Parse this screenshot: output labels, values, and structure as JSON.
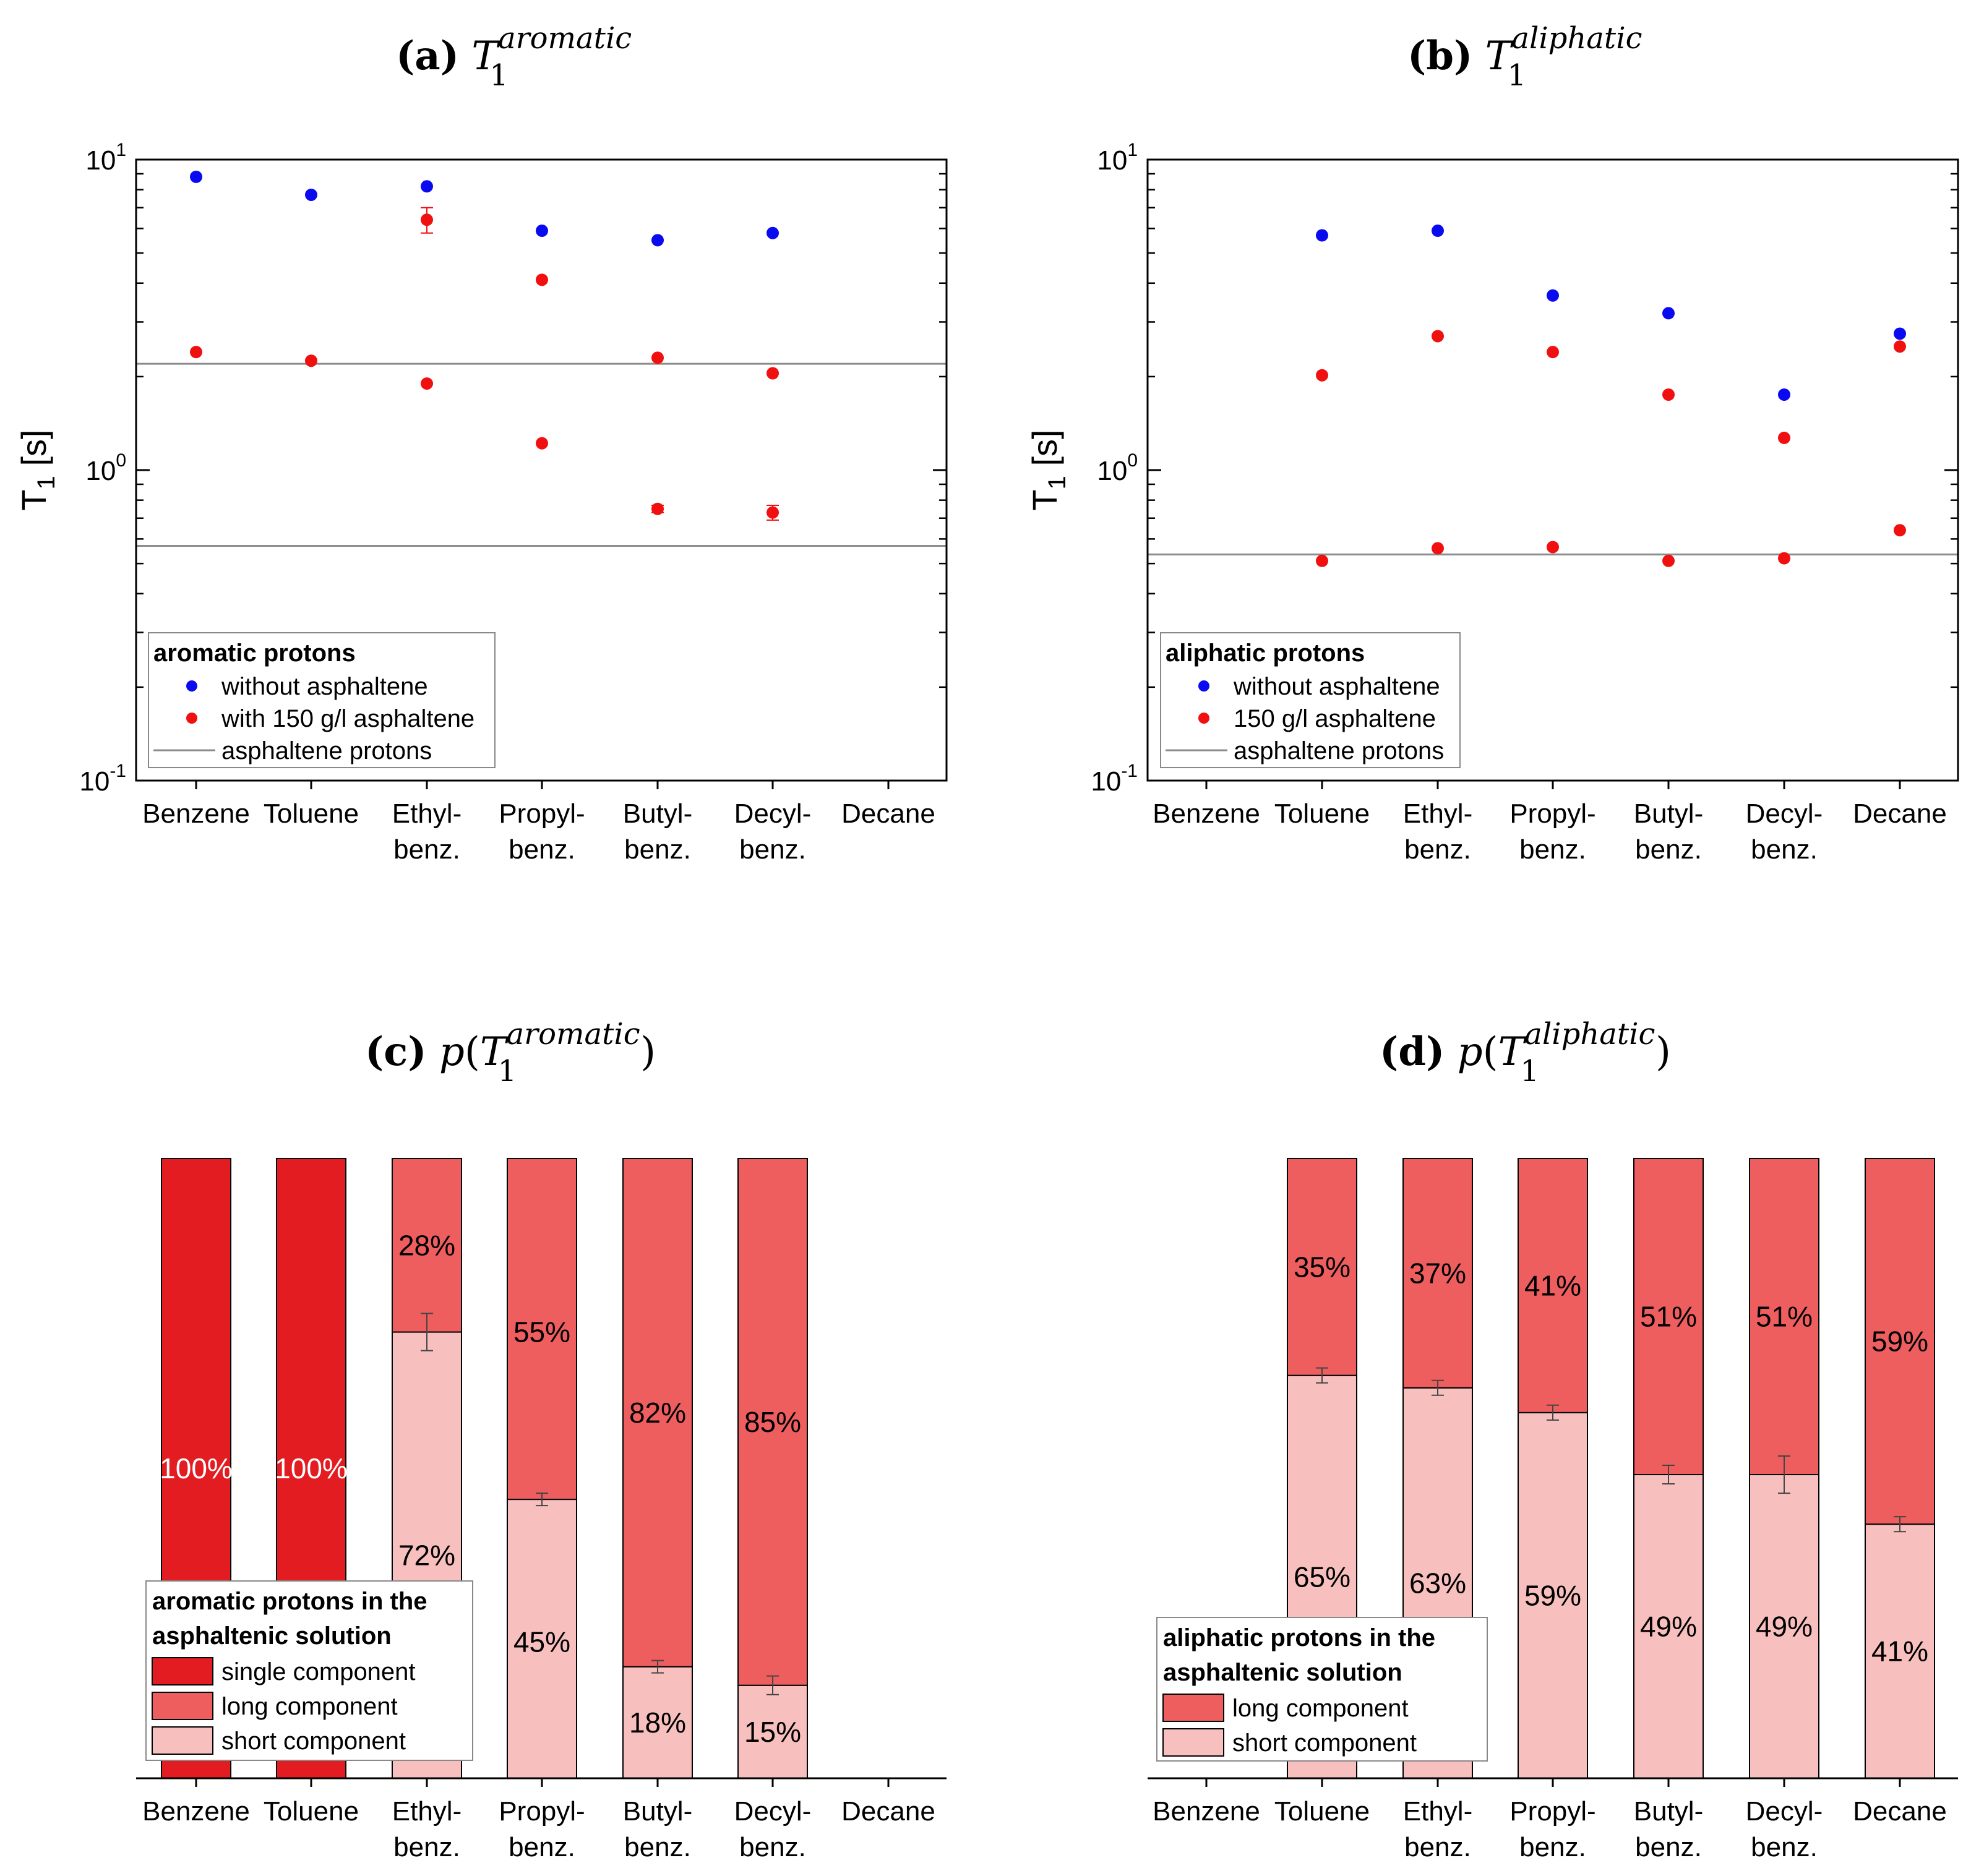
{
  "colors": {
    "blue": "#0a0af0",
    "red": "#f01010",
    "single": "#e31c22",
    "long": "#ee5e5f",
    "short": "#f7c0be",
    "line": "#8c8c8c",
    "errbar": "#444444"
  },
  "panels": {
    "a": {
      "letter": "(a)",
      "sym": "T",
      "sup": "aromatic",
      "sub": "1"
    },
    "b": {
      "letter": "(b)",
      "sym": "T",
      "sup": "aliphatic",
      "sub": "1"
    },
    "c": {
      "letter": "(c)",
      "pre": "p",
      "open": "(",
      "sym": "T",
      "sup": "aromatic",
      "sub": "1",
      "close": ")"
    },
    "d": {
      "letter": "(d)",
      "pre": "p",
      "open": "(",
      "sym": "T",
      "sup": "aliphatic",
      "sub": "1",
      "close": ")"
    }
  },
  "ylabel_main": "T",
  "ylabel_sub": "1",
  "ylabel_unit": " [s]",
  "yticks": [
    {
      "base": "10",
      "exp": "1",
      "value": 10
    },
    {
      "base": "10",
      "exp": "0",
      "value": 1
    },
    {
      "base": "10",
      "exp": "-1",
      "value": 0.1
    }
  ],
  "categories": [
    [
      "Benzene"
    ],
    [
      "Toluene"
    ],
    [
      "Ethyl-",
      "benz."
    ],
    [
      "Propyl-",
      "benz."
    ],
    [
      "Butyl-",
      "benz."
    ],
    [
      "Decyl-",
      "benz."
    ],
    [
      "Decane"
    ]
  ],
  "chart_data": [
    {
      "panel": "a",
      "type": "scatter",
      "title": "(a) T1^aromatic",
      "ylabel": "T1 [s]",
      "yscale": "log",
      "ylim": [
        0.1,
        10
      ],
      "legend": {
        "title": "aromatic protons",
        "entries": [
          "without asphaltene",
          "with 150 g/l asphaltene",
          "asphaltene protons"
        ]
      },
      "series": [
        {
          "name": "without asphaltene",
          "color": "blue",
          "x": [
            0,
            1,
            2,
            3,
            4,
            5
          ],
          "y": [
            8.8,
            7.7,
            8.2,
            5.9,
            5.5,
            5.8
          ]
        },
        {
          "name": "with 150 g/l asphaltene (long)",
          "color": "red",
          "x": [
            0,
            1,
            2,
            3,
            4,
            5
          ],
          "y": [
            2.4,
            2.25,
            6.4,
            4.1,
            2.3,
            2.05
          ],
          "err": [
            0,
            0,
            0.6,
            0,
            0,
            0
          ]
        },
        {
          "name": "with 150 g/l asphaltene (short)",
          "color": "red",
          "x": [
            2,
            3,
            4,
            5
          ],
          "y": [
            1.9,
            1.22,
            0.75,
            0.73
          ],
          "err": [
            0,
            0,
            0.02,
            0.04
          ]
        }
      ],
      "hlines": [
        2.2,
        0.57
      ]
    },
    {
      "panel": "b",
      "type": "scatter",
      "title": "(b) T1^aliphatic",
      "ylabel": "T1 [s]",
      "yscale": "log",
      "ylim": [
        0.1,
        10
      ],
      "legend": {
        "title": "aliphatic protons",
        "entries": [
          "without asphaltene",
          "150 g/l asphaltene",
          "asphaltene protons"
        ]
      },
      "series": [
        {
          "name": "without asphaltene",
          "color": "blue",
          "x": [
            1,
            2,
            3,
            4,
            5,
            6
          ],
          "y": [
            5.7,
            5.9,
            3.65,
            3.2,
            1.75,
            2.75
          ]
        },
        {
          "name": "150 g/l asphaltene (long)",
          "color": "red",
          "x": [
            1,
            2,
            3,
            4,
            5,
            6
          ],
          "y": [
            2.02,
            2.7,
            2.4,
            1.75,
            1.27,
            2.5
          ],
          "err": [
            0,
            0,
            0,
            0,
            0,
            0
          ]
        },
        {
          "name": "150 g/l asphaltene (short)",
          "color": "red",
          "x": [
            1,
            2,
            3,
            4,
            5,
            6
          ],
          "y": [
            0.51,
            0.56,
            0.565,
            0.51,
            0.52,
            0.64
          ],
          "err": [
            0,
            0,
            0,
            0,
            0,
            0
          ]
        }
      ],
      "hlines": [
        0.535
      ]
    },
    {
      "panel": "c",
      "type": "bar",
      "stacked": true,
      "title": "(c) p(T1^aromatic)",
      "ylim": [
        0,
        100
      ],
      "legend": {
        "title": [
          "aromatic protons in the",
          "asphaltenic solution"
        ],
        "entries": [
          "single component",
          "long component",
          "short component"
        ]
      },
      "bars": [
        {
          "x": 0,
          "single": 100
        },
        {
          "x": 1,
          "single": 100
        },
        {
          "x": 2,
          "short": 72,
          "long": 28,
          "err": 3
        },
        {
          "x": 3,
          "short": 45,
          "long": 55,
          "err": 1
        },
        {
          "x": 4,
          "short": 18,
          "long": 82,
          "err": 1
        },
        {
          "x": 5,
          "short": 15,
          "long": 85,
          "err": 1.5
        }
      ],
      "labels": [
        {
          "text": "100%",
          "x": 0,
          "y": 50,
          "color": "#ffffff"
        },
        {
          "text": "100%",
          "x": 1,
          "y": 50,
          "color": "#ffffff"
        },
        {
          "text": "28%",
          "x": 2,
          "y": 86,
          "color": "#000000"
        },
        {
          "text": "72%",
          "x": 2,
          "y": 36,
          "color": "#000000"
        },
        {
          "text": "55%",
          "x": 3,
          "y": 72,
          "color": "#000000"
        },
        {
          "text": "45%",
          "x": 3,
          "y": 22,
          "color": "#000000"
        },
        {
          "text": "82%",
          "x": 4,
          "y": 59,
          "color": "#000000"
        },
        {
          "text": "18%",
          "x": 4,
          "y": 9,
          "color": "#000000"
        },
        {
          "text": "85%",
          "x": 5,
          "y": 57.5,
          "color": "#000000"
        },
        {
          "text": "15%",
          "x": 5,
          "y": 7.5,
          "color": "#000000"
        }
      ]
    },
    {
      "panel": "d",
      "type": "bar",
      "stacked": true,
      "title": "(d) p(T1^aliphatic)",
      "ylim": [
        0,
        100
      ],
      "legend": {
        "title": [
          "aliphatic protons in the",
          "asphaltenic solution"
        ],
        "entries": [
          "long component",
          "short component"
        ]
      },
      "bars": [
        {
          "x": 1,
          "short": 65,
          "long": 35,
          "err": 1.2
        },
        {
          "x": 2,
          "short": 63,
          "long": 37,
          "err": 1.2
        },
        {
          "x": 3,
          "short": 59,
          "long": 41,
          "err": 1.2
        },
        {
          "x": 4,
          "short": 49,
          "long": 51,
          "err": 1.5
        },
        {
          "x": 5,
          "short": 49,
          "long": 51,
          "err": 3
        },
        {
          "x": 6,
          "short": 41,
          "long": 59,
          "err": 1.2
        }
      ],
      "labels": [
        {
          "text": "35%",
          "x": 1,
          "y": 82.5,
          "color": "#000000"
        },
        {
          "text": "65%",
          "x": 1,
          "y": 32.5,
          "color": "#000000"
        },
        {
          "text": "37%",
          "x": 2,
          "y": 81.5,
          "color": "#000000"
        },
        {
          "text": "63%",
          "x": 2,
          "y": 31.5,
          "color": "#000000"
        },
        {
          "text": "41%",
          "x": 3,
          "y": 79.5,
          "color": "#000000"
        },
        {
          "text": "59%",
          "x": 3,
          "y": 29.5,
          "color": "#000000"
        },
        {
          "text": "51%",
          "x": 4,
          "y": 74.5,
          "color": "#000000"
        },
        {
          "text": "49%",
          "x": 4,
          "y": 24.5,
          "color": "#000000"
        },
        {
          "text": "51%",
          "x": 5,
          "y": 74.5,
          "color": "#000000"
        },
        {
          "text": "49%",
          "x": 5,
          "y": 24.5,
          "color": "#000000"
        },
        {
          "text": "59%",
          "x": 6,
          "y": 70.5,
          "color": "#000000"
        },
        {
          "text": "41%",
          "x": 6,
          "y": 20.5,
          "color": "#000000"
        }
      ]
    }
  ]
}
